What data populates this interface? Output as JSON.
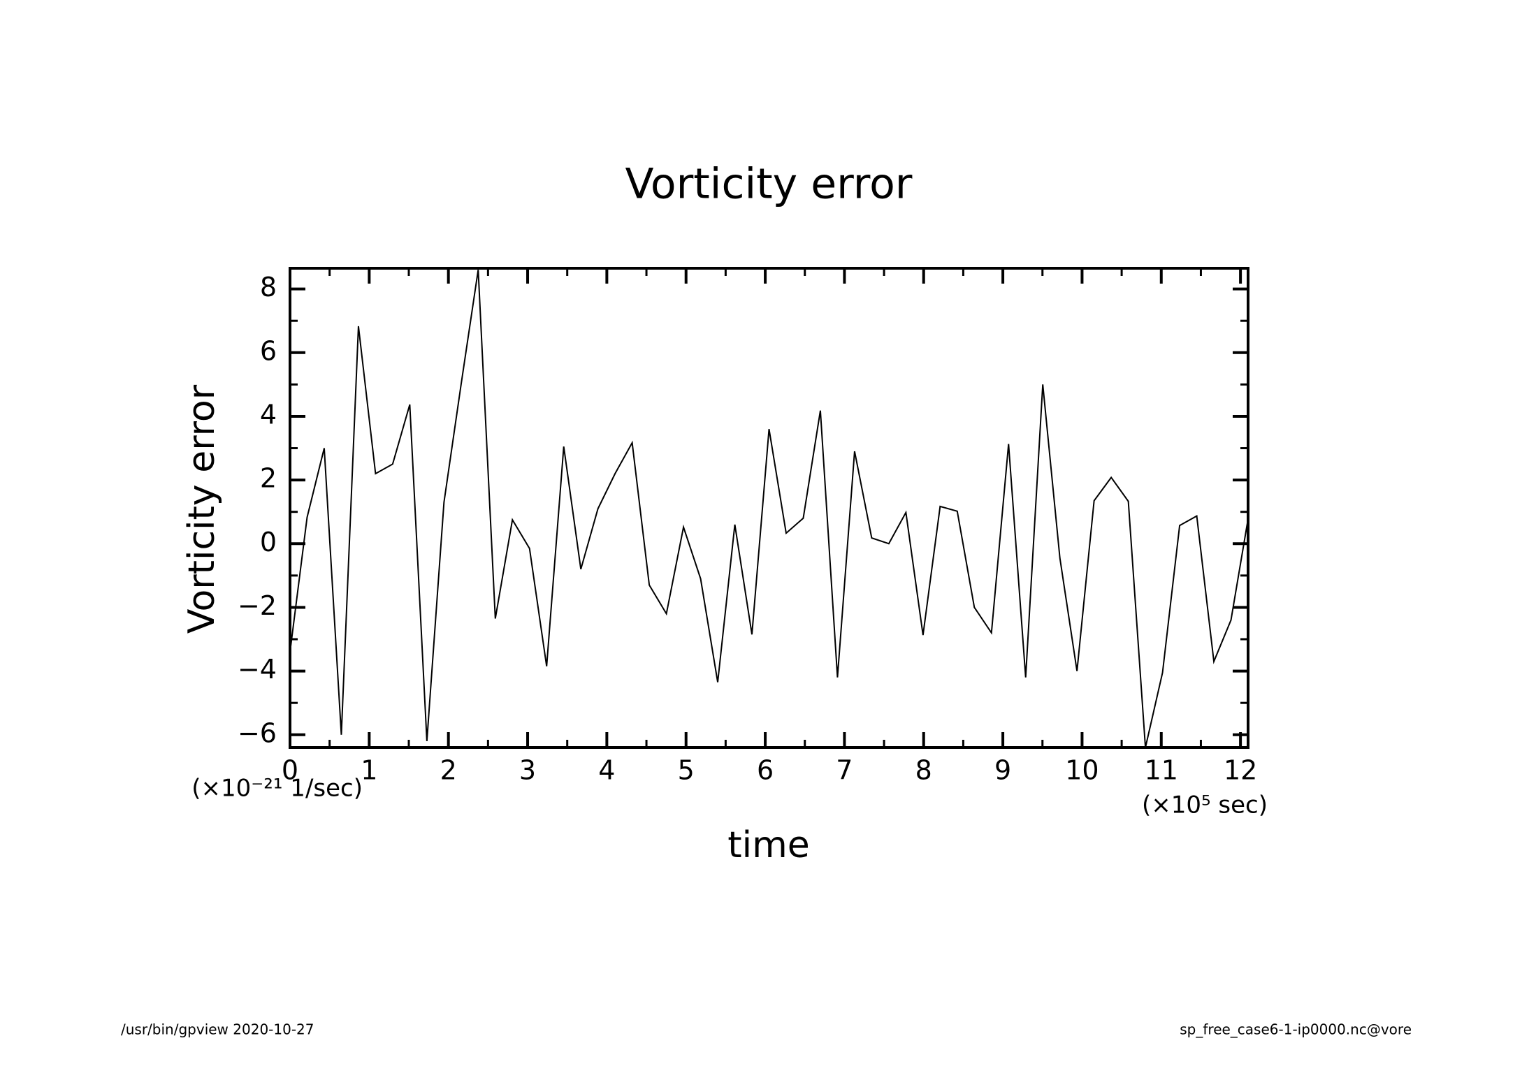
{
  "chart_data": {
    "type": "line",
    "title": "Vorticity error",
    "x_label": "time",
    "y_label": "Vorticity error",
    "x_unit": "(×10⁵ sec)",
    "y_unit": "(×10⁻²¹ 1/sec)",
    "footer_left": "/usr/bin/gpview  2020-10-27",
    "footer_right": "sp_free_case6-1-ip0000.nc@vore",
    "color": "#000000",
    "x": [
      0,
      0.216,
      0.432,
      0.648,
      0.864,
      1.08,
      1.296,
      1.512,
      1.728,
      1.944,
      2.16,
      2.376,
      2.592,
      2.808,
      3.024,
      3.24,
      3.456,
      3.672,
      3.888,
      4.104,
      4.32,
      4.536,
      4.752,
      4.968,
      5.184,
      5.4,
      5.616,
      5.832,
      6.048,
      6.264,
      6.48,
      6.696,
      6.912,
      7.128,
      7.344,
      7.56,
      7.776,
      7.992,
      8.208,
      8.424,
      8.64,
      8.856,
      9.072,
      9.288,
      9.504,
      9.72,
      9.936,
      10.152,
      10.368,
      10.584,
      10.8,
      11.016,
      11.232,
      11.448,
      11.664,
      11.88,
      12.096
    ],
    "values": [
      -3.4,
      0.83,
      3.0,
      -6.0,
      6.83,
      2.2,
      2.5,
      4.37,
      -6.2,
      1.3,
      5.0,
      8.6,
      -2.35,
      0.75,
      -0.15,
      -3.85,
      3.05,
      -0.8,
      1.1,
      2.2,
      3.17,
      -1.3,
      -2.2,
      0.52,
      -1.1,
      -4.35,
      0.6,
      -2.85,
      3.6,
      0.33,
      0.8,
      4.18,
      -4.2,
      2.9,
      0.18,
      0.0,
      0.98,
      -2.87,
      1.17,
      1.02,
      -2.0,
      -2.8,
      3.13,
      -4.2,
      5.0,
      -0.45,
      -4.0,
      1.35,
      2.08,
      1.33,
      -6.4,
      -4.05,
      0.57,
      0.87,
      -3.7,
      -2.4,
      0.78
    ],
    "xlim": [
      0,
      12.096
    ],
    "ylim": [
      -6.4,
      8.65
    ],
    "xticks": [
      0,
      1,
      2,
      3,
      4,
      5,
      6,
      7,
      8,
      9,
      10,
      11,
      12
    ],
    "xminorticks": [
      0.5,
      1.5,
      2.5,
      3.5,
      4.5,
      5.5,
      6.5,
      7.5,
      8.5,
      9.5,
      10.5,
      11.5
    ],
    "yticks": [
      -6,
      -4,
      -2,
      0,
      2,
      4,
      6,
      8
    ],
    "yminorticks": [
      -5,
      -3,
      -1,
      1,
      3,
      5,
      7
    ],
    "grid": false
  }
}
